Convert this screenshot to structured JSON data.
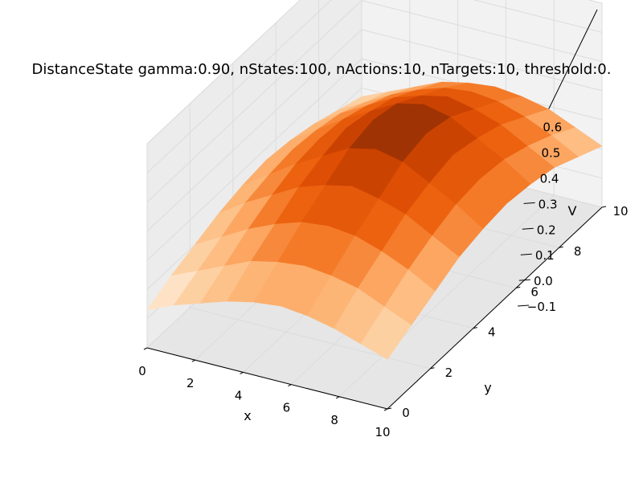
{
  "chart_data": {
    "type": "surface3d",
    "title": "DistanceState gamma:0.90, nStates:100, nActions:10, nTargets:10, threshold:0.",
    "xlabel": "x",
    "ylabel": "y",
    "zlabel": "V",
    "x_ticks": [
      "0",
      "2",
      "4",
      "6",
      "8",
      "10"
    ],
    "y_ticks": [
      "0",
      "2",
      "4",
      "6",
      "8",
      "10"
    ],
    "z_ticks": [
      "−0.1",
      "0.0",
      "0.1",
      "0.2",
      "0.3",
      "0.4",
      "0.5",
      "0.6"
    ],
    "xlim": [
      0,
      10
    ],
    "ylim": [
      0,
      10
    ],
    "zlim": [
      -0.1,
      0.6
    ],
    "grid": true,
    "colormap": "Oranges",
    "color_low": "#fff5eb",
    "color_high": "#7f2704",
    "x": [
      0,
      1,
      2,
      3,
      4,
      5,
      6,
      7,
      8,
      9
    ],
    "y": [
      0,
      1,
      2,
      3,
      4,
      5,
      6,
      7,
      8,
      9
    ],
    "z": [
      [
        0.03,
        0.07,
        0.1,
        0.13,
        0.15,
        0.16,
        0.15,
        0.13,
        0.1,
        0.07
      ],
      [
        0.07,
        0.11,
        0.15,
        0.19,
        0.21,
        0.22,
        0.21,
        0.19,
        0.15,
        0.11
      ],
      [
        0.1,
        0.15,
        0.2,
        0.24,
        0.27,
        0.28,
        0.27,
        0.24,
        0.2,
        0.15
      ],
      [
        0.13,
        0.19,
        0.24,
        0.29,
        0.32,
        0.34,
        0.32,
        0.29,
        0.24,
        0.19
      ],
      [
        0.15,
        0.21,
        0.27,
        0.32,
        0.37,
        0.39,
        0.37,
        0.32,
        0.27,
        0.21
      ],
      [
        0.16,
        0.22,
        0.28,
        0.34,
        0.39,
        0.42,
        0.39,
        0.34,
        0.28,
        0.22
      ],
      [
        0.15,
        0.21,
        0.27,
        0.32,
        0.37,
        0.39,
        0.37,
        0.32,
        0.27,
        0.21
      ],
      [
        0.13,
        0.19,
        0.24,
        0.29,
        0.32,
        0.34,
        0.32,
        0.29,
        0.24,
        0.19
      ],
      [
        0.1,
        0.15,
        0.2,
        0.24,
        0.27,
        0.28,
        0.27,
        0.24,
        0.2,
        0.15
      ],
      [
        0.07,
        0.11,
        0.15,
        0.19,
        0.21,
        0.22,
        0.21,
        0.19,
        0.15,
        0.11
      ]
    ]
  }
}
